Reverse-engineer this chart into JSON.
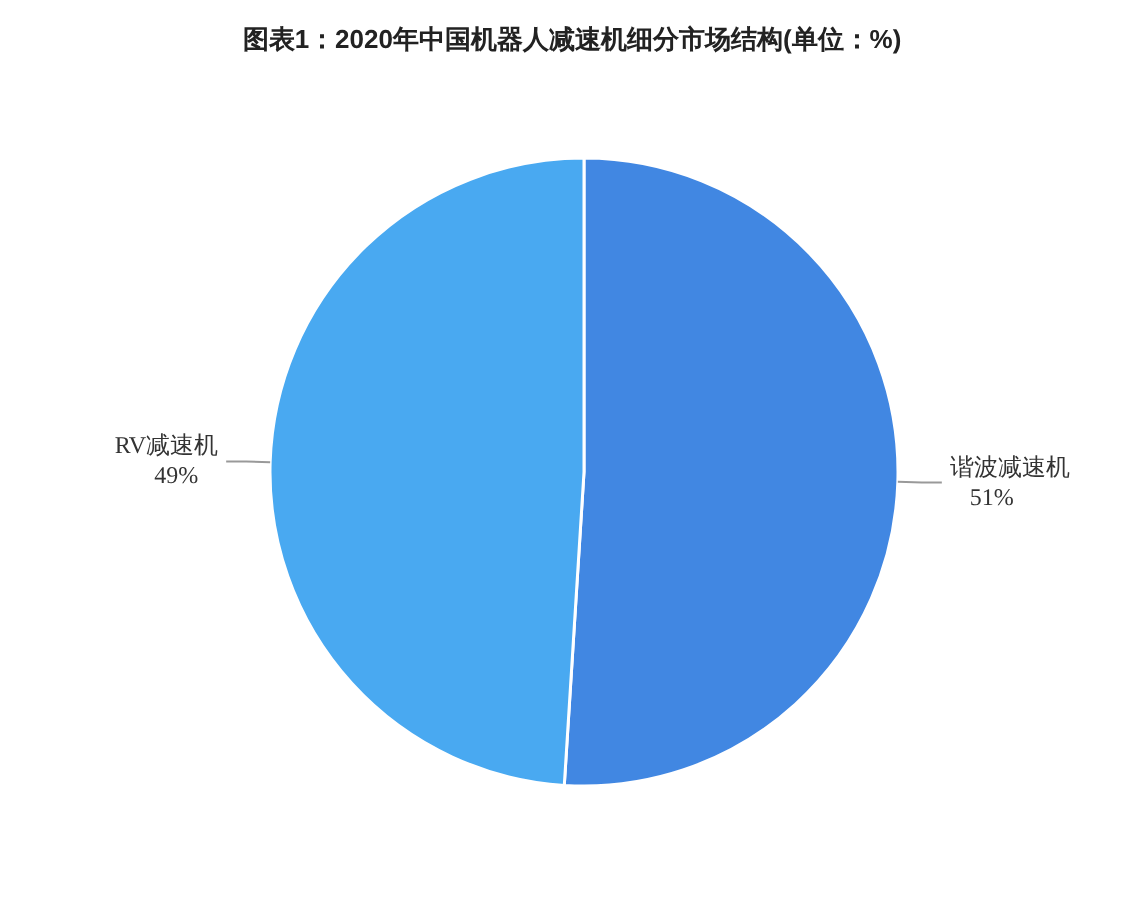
{
  "chart_data": {
    "type": "pie",
    "title": "图表1：2020年中国机器人减速机细分市场结构(单位：%)",
    "categories": [
      "谐波减速机",
      "RV减速机"
    ],
    "values": [
      51,
      49
    ],
    "colors": [
      "#4187e2",
      "#49a9f1"
    ],
    "value_labels": [
      "51%",
      "49%"
    ]
  }
}
